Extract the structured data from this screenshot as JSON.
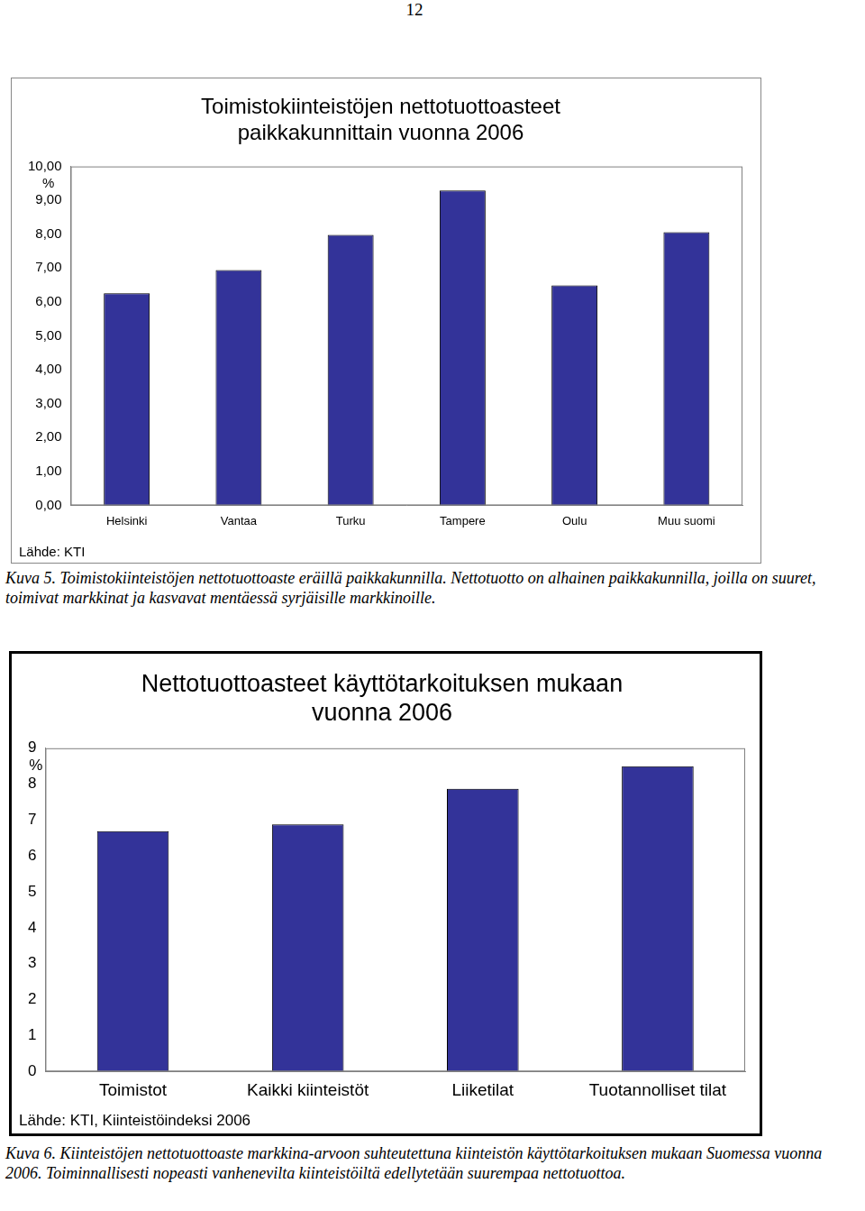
{
  "page_number": "12",
  "chart_data": [
    {
      "type": "bar",
      "title": [
        "Toimistokiinteistöjen nettotuottoasteet",
        "paikkakunnittain vuonna 2006"
      ],
      "ylabel": "%",
      "source": "Lähde: KTI",
      "categories": [
        "Helsinki",
        "Vantaa",
        "Turku",
        "Tampere",
        "Oulu",
        "Muu suomi"
      ],
      "values": [
        6.26,
        6.94,
        7.98,
        9.29,
        6.49,
        8.06
      ],
      "color": "#333399",
      "ylim": [
        0,
        10
      ],
      "yticks": [
        {
          "value": 0,
          "label": "0,00"
        },
        {
          "value": 1,
          "label": "1,00"
        },
        {
          "value": 2,
          "label": "2,00"
        },
        {
          "value": 3,
          "label": "3,00"
        },
        {
          "value": 4,
          "label": "4,00"
        },
        {
          "value": 5,
          "label": "5,00"
        },
        {
          "value": 6,
          "label": "6,00"
        },
        {
          "value": 7,
          "label": "7,00"
        },
        {
          "value": 8,
          "label": "8,00"
        },
        {
          "value": 9,
          "label": "9,00"
        },
        {
          "value": 10,
          "label": "10,00"
        }
      ],
      "grid": false
    },
    {
      "type": "bar",
      "title": [
        "Nettotuottoasteet käyttötarkoituksen mukaan",
        "vuonna 2006"
      ],
      "ylabel": "%",
      "source": "Lähde: KTI, Kiinteistöindeksi 2006",
      "categories": [
        "Toimistot",
        "Kaikki kiinteistöt",
        "Liiketilat",
        "Tuotannolliset tilat"
      ],
      "values": [
        6.69,
        6.88,
        7.87,
        8.5
      ],
      "color": "#333399",
      "ylim": [
        0,
        9
      ],
      "yticks": [
        0,
        1,
        2,
        3,
        4,
        5,
        6,
        7,
        8,
        9
      ],
      "grid": false
    }
  ],
  "captions": [
    "Kuva 5. Toimistokiinteistöjen nettotuottoaste eräillä paikkakunnilla. Nettotuotto on alhainen paikkakunnilla, joilla on suuret, toimivat markkinat ja kasvavat mentäessä syrjäisille markkinoille.",
    "Kuva 6. Kiinteistöjen nettotuottoaste markkina-arvoon suhteutettuna kiinteistön käyttötarkoituksen mukaan Suomessa vuonna 2006. Toiminnallisesti nopeasti vanhenevilta kiinteistöiltä edellytetään suurempaa nettotuottoa."
  ]
}
